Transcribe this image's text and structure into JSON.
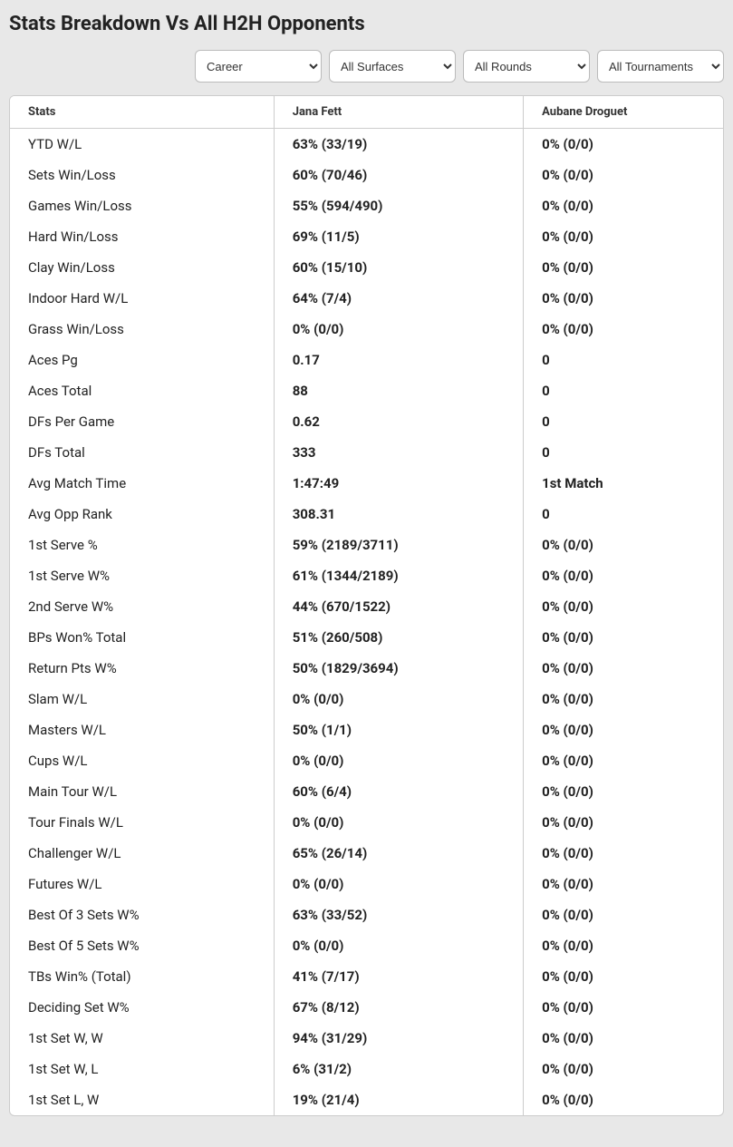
{
  "title": "Stats Breakdown Vs All H2H Opponents",
  "filters": {
    "career": "Career",
    "surface": "All Surfaces",
    "rounds": "All Rounds",
    "tournament": "All Tournaments"
  },
  "table": {
    "headers": {
      "stats": "Stats",
      "player1": "Jana Fett",
      "player2": "Aubane Droguet"
    },
    "rows": [
      {
        "label": "YTD W/L",
        "p1": "63% (33/19)",
        "p2": "0% (0/0)"
      },
      {
        "label": "Sets Win/Loss",
        "p1": "60% (70/46)",
        "p2": "0% (0/0)"
      },
      {
        "label": "Games Win/Loss",
        "p1": "55% (594/490)",
        "p2": "0% (0/0)"
      },
      {
        "label": "Hard Win/Loss",
        "p1": "69% (11/5)",
        "p2": "0% (0/0)"
      },
      {
        "label": "Clay Win/Loss",
        "p1": "60% (15/10)",
        "p2": "0% (0/0)"
      },
      {
        "label": "Indoor Hard W/L",
        "p1": "64% (7/4)",
        "p2": "0% (0/0)"
      },
      {
        "label": "Grass Win/Loss",
        "p1": "0% (0/0)",
        "p2": "0% (0/0)"
      },
      {
        "label": "Aces Pg",
        "p1": "0.17",
        "p2": "0"
      },
      {
        "label": "Aces Total",
        "p1": "88",
        "p2": "0"
      },
      {
        "label": "DFs Per Game",
        "p1": "0.62",
        "p2": "0"
      },
      {
        "label": "DFs Total",
        "p1": "333",
        "p2": "0"
      },
      {
        "label": "Avg Match Time",
        "p1": "1:47:49",
        "p2": "1st Match"
      },
      {
        "label": "Avg Opp Rank",
        "p1": "308.31",
        "p2": "0"
      },
      {
        "label": "1st Serve %",
        "p1": "59% (2189/3711)",
        "p2": "0% (0/0)"
      },
      {
        "label": "1st Serve W%",
        "p1": "61% (1344/2189)",
        "p2": "0% (0/0)"
      },
      {
        "label": "2nd Serve W%",
        "p1": "44% (670/1522)",
        "p2": "0% (0/0)"
      },
      {
        "label": "BPs Won% Total",
        "p1": "51% (260/508)",
        "p2": "0% (0/0)"
      },
      {
        "label": "Return Pts W%",
        "p1": "50% (1829/3694)",
        "p2": "0% (0/0)"
      },
      {
        "label": "Slam W/L",
        "p1": "0% (0/0)",
        "p2": "0% (0/0)"
      },
      {
        "label": "Masters W/L",
        "p1": "50% (1/1)",
        "p2": "0% (0/0)"
      },
      {
        "label": "Cups W/L",
        "p1": "0% (0/0)",
        "p2": "0% (0/0)"
      },
      {
        "label": "Main Tour W/L",
        "p1": "60% (6/4)",
        "p2": "0% (0/0)"
      },
      {
        "label": "Tour Finals W/L",
        "p1": "0% (0/0)",
        "p2": "0% (0/0)"
      },
      {
        "label": "Challenger W/L",
        "p1": "65% (26/14)",
        "p2": "0% (0/0)"
      },
      {
        "label": "Futures W/L",
        "p1": "0% (0/0)",
        "p2": "0% (0/0)"
      },
      {
        "label": "Best Of 3 Sets W%",
        "p1": "63% (33/52)",
        "p2": "0% (0/0)"
      },
      {
        "label": "Best Of 5 Sets W%",
        "p1": "0% (0/0)",
        "p2": "0% (0/0)"
      },
      {
        "label": "TBs Win% (Total)",
        "p1": "41% (7/17)",
        "p2": "0% (0/0)"
      },
      {
        "label": "Deciding Set W%",
        "p1": "67% (8/12)",
        "p2": "0% (0/0)"
      },
      {
        "label": "1st Set W, W",
        "p1": "94% (31/29)",
        "p2": "0% (0/0)"
      },
      {
        "label": "1st Set W, L",
        "p1": "6% (31/2)",
        "p2": "0% (0/0)"
      },
      {
        "label": "1st Set L, W",
        "p1": "19% (21/4)",
        "p2": "0% (0/0)"
      }
    ]
  }
}
